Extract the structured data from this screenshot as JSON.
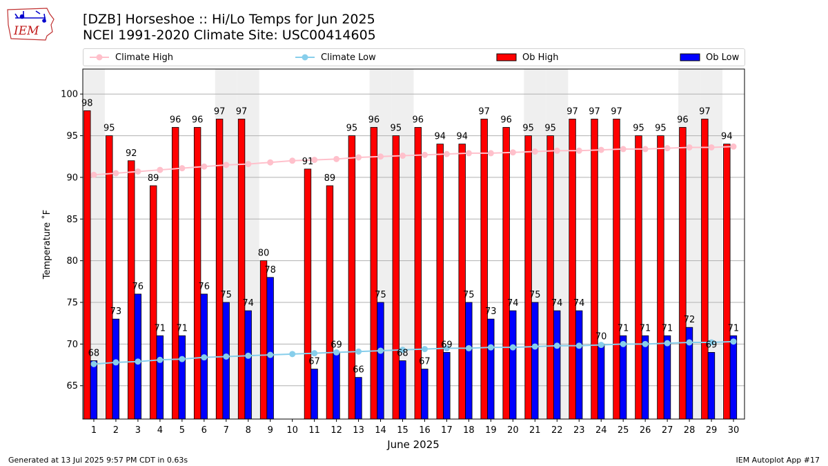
{
  "header": {
    "logo_text": "IEM",
    "title_line1": "[DZB] Horseshoe :: Hi/Lo Temps for Jun 2025",
    "title_line2": "NCEI 1991-2020 Climate Site: USC00414605"
  },
  "legend": {
    "climate_high": "Climate High",
    "climate_low": "Climate Low",
    "ob_high": "Ob High",
    "ob_low": "Ob Low"
  },
  "colors": {
    "ob_high": "#ff0000",
    "ob_low": "#0000ff",
    "climate_high": "#ffc0cb",
    "climate_low": "#87ceeb",
    "weekend_shade": "#efefef",
    "grid": "#b0b0b0"
  },
  "chart_data": {
    "type": "bar",
    "title": "[DZB] Horseshoe :: Hi/Lo Temps for Jun 2025",
    "subtitle": "NCEI 1991-2020 Climate Site: USC00414605",
    "xlabel": "June 2025",
    "ylabel": "Temperature ˚F",
    "ylim": [
      61,
      103
    ],
    "yticks": [
      65,
      70,
      75,
      80,
      85,
      90,
      95,
      100
    ],
    "grid": true,
    "legend_position": "top",
    "categories": [
      "1",
      "2",
      "3",
      "4",
      "5",
      "6",
      "7",
      "8",
      "9",
      "10",
      "11",
      "12",
      "13",
      "14",
      "15",
      "16",
      "17",
      "18",
      "19",
      "20",
      "21",
      "22",
      "23",
      "24",
      "25",
      "26",
      "27",
      "28",
      "29",
      "30"
    ],
    "weekend_days": [
      1,
      7,
      8,
      14,
      15,
      21,
      22,
      28,
      29
    ],
    "series": [
      {
        "name": "Ob High",
        "kind": "bar",
        "values": [
          98,
          95,
          92,
          89,
          96,
          96,
          97,
          97,
          80,
          null,
          91,
          89,
          95,
          96,
          95,
          96,
          94,
          94,
          97,
          96,
          95,
          95,
          97,
          97,
          97,
          95,
          95,
          96,
          97,
          94
        ]
      },
      {
        "name": "Ob Low",
        "kind": "bar",
        "values": [
          68,
          73,
          76,
          71,
          71,
          76,
          75,
          74,
          78,
          null,
          67,
          69,
          66,
          75,
          68,
          67,
          69,
          75,
          73,
          74,
          75,
          74,
          74,
          70,
          71,
          71,
          71,
          72,
          69,
          71
        ]
      },
      {
        "name": "Climate High",
        "kind": "line",
        "values": [
          90.3,
          90.5,
          90.7,
          90.9,
          91.1,
          91.3,
          91.5,
          91.6,
          91.8,
          92.0,
          92.1,
          92.2,
          92.4,
          92.5,
          92.6,
          92.7,
          92.8,
          92.9,
          92.9,
          93.0,
          93.1,
          93.2,
          93.2,
          93.3,
          93.4,
          93.4,
          93.5,
          93.6,
          93.6,
          93.7
        ]
      },
      {
        "name": "Climate Low",
        "kind": "line",
        "values": [
          67.6,
          67.8,
          67.9,
          68.1,
          68.2,
          68.4,
          68.5,
          68.6,
          68.7,
          68.8,
          68.9,
          69.0,
          69.1,
          69.2,
          69.3,
          69.4,
          69.5,
          69.5,
          69.6,
          69.6,
          69.7,
          69.8,
          69.8,
          69.9,
          70.0,
          70.0,
          70.1,
          70.2,
          70.2,
          70.3
        ]
      }
    ]
  },
  "footer": {
    "generated": "Generated at 13 Jul 2025 9:57 PM CDT in 0.63s",
    "app": "IEM Autoplot App #17"
  }
}
